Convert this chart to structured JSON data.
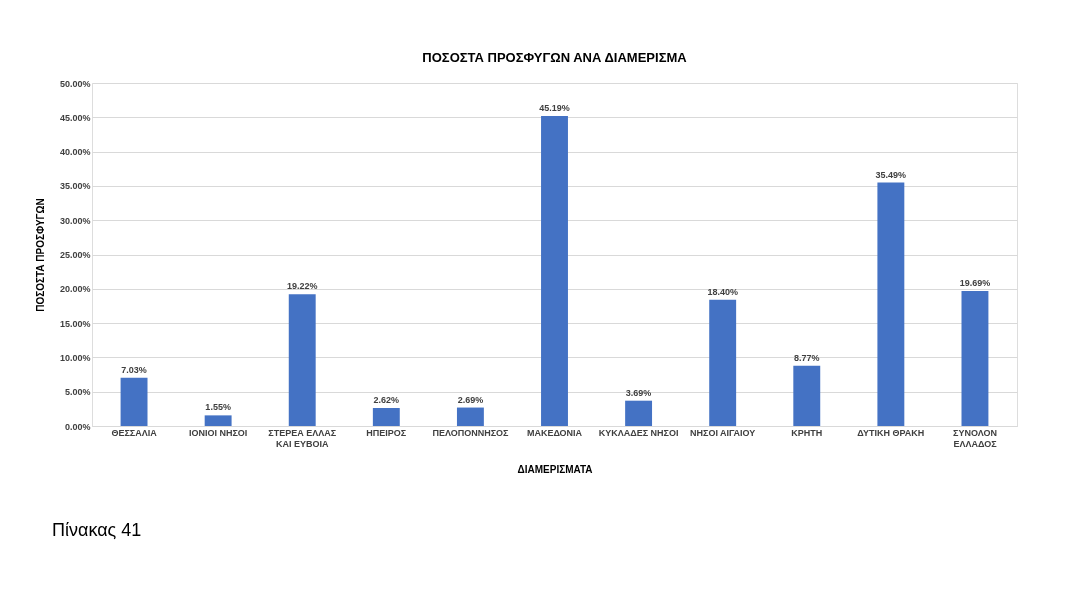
{
  "chart_data": {
    "type": "bar",
    "title": "ΠΟΣΟΣΤΑ ΠΡΟΣΦΥΓΩΝ ΑΝΑ ΔΙΑΜΕΡΙΣΜΑ",
    "xlabel": "ΔΙΑΜΕΡΙΣΜΑΤΑ",
    "ylabel": "ΠΟΣΟΣΤΑ ΠΡΟΣΦΥΓΩΝ",
    "categories": [
      "ΘΕΣΣΑΛΙΑ",
      "ΙΟΝΙΟΙ ΝΗΣΟΙ",
      "ΣΤΕΡΕΑ ΕΛΛΑΣ ΚΑΙ ΕΥΒΟΙΑ",
      "ΗΠΕΙΡΟΣ",
      "ΠΕΛΟΠΟΝΝΗΣΟΣ",
      "ΜΑΚΕΔΟΝΙΑ",
      "ΚΥΚΛΑΔΕΣ ΝΗΣΟΙ",
      "ΝΗΣΟΙ ΑΙΓΑΙΟΥ",
      "ΚΡΗΤΗ",
      "ΔΥΤΙΚΗ ΘΡΑΚΗ",
      "ΣΥΝΟΛΟΝ ΕΛΛΑΔΟΣ"
    ],
    "values": [
      7.03,
      1.55,
      19.22,
      2.62,
      2.69,
      45.19,
      3.69,
      18.4,
      8.77,
      35.49,
      19.69
    ],
    "value_labels": [
      "7.03%",
      "1.55%",
      "19.22%",
      "2.62%",
      "2.69%",
      "45.19%",
      "3.69%",
      "18.40%",
      "8.77%",
      "35.49%",
      "19.69%"
    ],
    "color": "#4472c4",
    "ylim": [
      0,
      50
    ],
    "yticks": [
      {
        "value": 0,
        "label": "0.00%"
      },
      {
        "value": 5,
        "label": "5.00%"
      },
      {
        "value": 10,
        "label": "10.00%"
      },
      {
        "value": 15,
        "label": "15.00%"
      },
      {
        "value": 20,
        "label": "20.00%"
      },
      {
        "value": 25,
        "label": "25.00%"
      },
      {
        "value": 30,
        "label": "30.00%"
      },
      {
        "value": 35,
        "label": "35.00%"
      },
      {
        "value": 40,
        "label": "40.00%"
      },
      {
        "value": 45,
        "label": "45.00%"
      },
      {
        "value": 50,
        "label": "50.00%"
      }
    ],
    "grid": "y",
    "annotations": [
      "Πίνακας 41"
    ]
  }
}
